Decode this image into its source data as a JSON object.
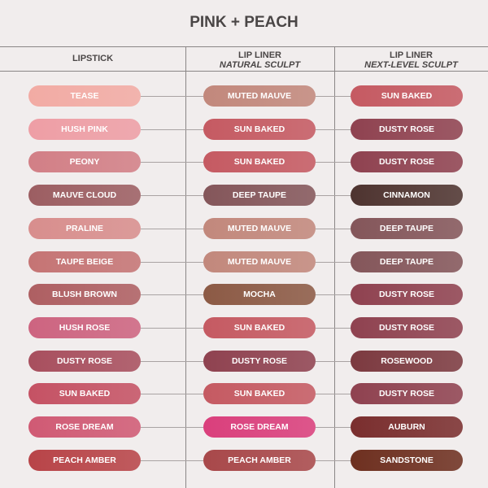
{
  "title": "PINK + PEACH",
  "columns": [
    {
      "label": "LIPSTICK",
      "sublabel": ""
    },
    {
      "label": "LIP LINER",
      "sublabel": "NATURAL SCULPT"
    },
    {
      "label": "LIP LINER",
      "sublabel": "NEXT-LEVEL SCULPT"
    }
  ],
  "rows": [
    [
      {
        "name": "TEASE",
        "color": "#f2aba4"
      },
      {
        "name": "MUTED MAUVE",
        "color": "#c2887c"
      },
      {
        "name": "SUN BAKED",
        "color": "#c55a62"
      }
    ],
    [
      {
        "name": "HUSH PINK",
        "color": "#ee9ea5"
      },
      {
        "name": "SUN BAKED",
        "color": "#c55a62"
      },
      {
        "name": "DUSTY ROSE",
        "color": "#8f4250"
      }
    ],
    [
      {
        "name": "PEONY",
        "color": "#d27f86"
      },
      {
        "name": "SUN BAKED",
        "color": "#c55a62"
      },
      {
        "name": "DUSTY ROSE",
        "color": "#8f4250"
      }
    ],
    [
      {
        "name": "MAUVE CLOUD",
        "color": "#9c5e62"
      },
      {
        "name": "DEEP TAUPE",
        "color": "#84565a"
      },
      {
        "name": "CINNAMON",
        "color": "#4e3430"
      }
    ],
    [
      {
        "name": "PRALINE",
        "color": "#d88e8d"
      },
      {
        "name": "MUTED MAUVE",
        "color": "#c2887c"
      },
      {
        "name": "DEEP TAUPE",
        "color": "#84565a"
      }
    ],
    [
      {
        "name": "TAUPE BEIGE",
        "color": "#c57474"
      },
      {
        "name": "MUTED MAUVE",
        "color": "#c2887c"
      },
      {
        "name": "DEEP TAUPE",
        "color": "#84565a"
      }
    ],
    [
      {
        "name": "BLUSH BROWN",
        "color": "#ae5f62"
      },
      {
        "name": "MOCHA",
        "color": "#8c5a45"
      },
      {
        "name": "DUSTY ROSE",
        "color": "#8f4250"
      }
    ],
    [
      {
        "name": "HUSH ROSE",
        "color": "#cd6480"
      },
      {
        "name": "SUN BAKED",
        "color": "#c55a62"
      },
      {
        "name": "DUSTY ROSE",
        "color": "#8f4250"
      }
    ],
    [
      {
        "name": "DUSTY ROSE",
        "color": "#a84f5e"
      },
      {
        "name": "DUSTY ROSE",
        "color": "#8f4250"
      },
      {
        "name": "ROSEWOOD",
        "color": "#7c3a40"
      }
    ],
    [
      {
        "name": "SUN BAKED",
        "color": "#c55264"
      },
      {
        "name": "SUN BAKED",
        "color": "#c55a62"
      },
      {
        "name": "DUSTY ROSE",
        "color": "#8f4250"
      }
    ],
    [
      {
        "name": "ROSE DREAM",
        "color": "#d05a74"
      },
      {
        "name": "ROSE DREAM",
        "color": "#da3f7c"
      },
      {
        "name": "AUBURN",
        "color": "#7a2e2e"
      }
    ],
    [
      {
        "name": "PEACH AMBER",
        "color": "#b84448"
      },
      {
        "name": "PEACH AMBER",
        "color": "#a8484a"
      },
      {
        "name": "SANDSTONE",
        "color": "#6e3020"
      }
    ]
  ]
}
